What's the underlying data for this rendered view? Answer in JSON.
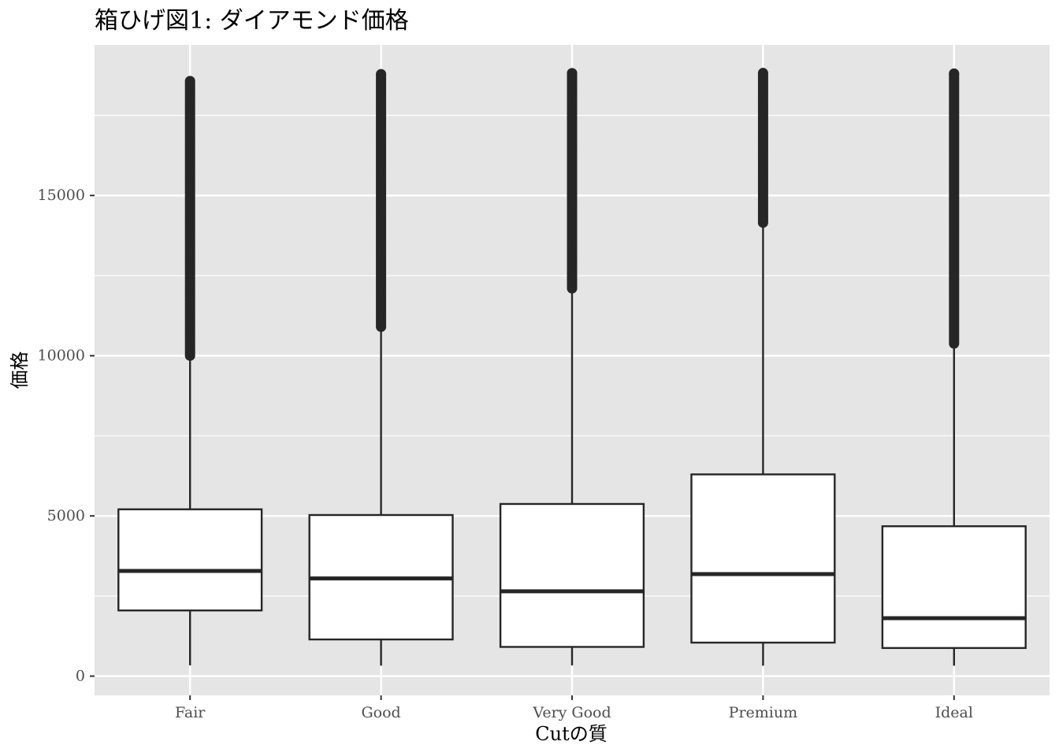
{
  "chart_data": {
    "type": "boxplot",
    "title": "箱ひげ図1: ダイアモンド価格",
    "xlabel": "Cutの質",
    "ylabel": "価格",
    "ylim": [
      -600,
      19700
    ],
    "yticks": [
      0,
      5000,
      10000,
      15000
    ],
    "ytick_labels": [
      "0",
      "5000",
      "10000",
      "15000"
    ],
    "grid": true,
    "legend": "none",
    "colors": {
      "panel": "#e5e5e5",
      "grid": "#ffffff",
      "box_fill": "#ffffff",
      "stroke": "#262626",
      "tick_text": "#4d4d4d"
    },
    "categories": [
      "Fair",
      "Good",
      "Very Good",
      "Premium",
      "Ideal"
    ],
    "boxes": [
      {
        "category": "Fair",
        "whisker_low": 337,
        "q1": 2050,
        "median": 3282,
        "q3": 5206,
        "whisker_high": 9950,
        "outlier_range": [
          10000,
          18574
        ]
      },
      {
        "category": "Good",
        "whisker_low": 327,
        "q1": 1145,
        "median": 3050,
        "q3": 5028,
        "whisker_high": 10850,
        "outlier_range": [
          10900,
          18788
        ]
      },
      {
        "category": "Very Good",
        "whisker_low": 336,
        "q1": 912,
        "median": 2648,
        "q3": 5373,
        "whisker_high": 12050,
        "outlier_range": [
          12100,
          18818
        ]
      },
      {
        "category": "Premium",
        "whisker_low": 326,
        "q1": 1046,
        "median": 3185,
        "q3": 6296,
        "whisker_high": 14100,
        "outlier_range": [
          14150,
          18823
        ]
      },
      {
        "category": "Ideal",
        "whisker_low": 326,
        "q1": 878,
        "median": 1810,
        "q3": 4678,
        "whisker_high": 10330,
        "outlier_range": [
          10380,
          18806
        ]
      }
    ]
  }
}
